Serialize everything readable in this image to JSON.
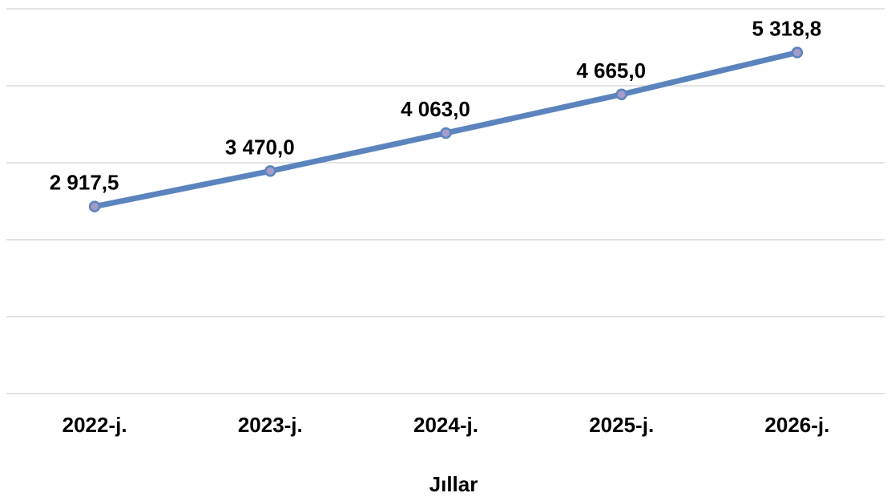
{
  "chart_data": {
    "type": "line",
    "categories": [
      "2022-j.",
      "2023-j.",
      "2024-j.",
      "2025-j.",
      "2026-j."
    ],
    "series": [
      {
        "values": [
          2917.5,
          3470.0,
          4063.0,
          4665.0,
          5318.8
        ],
        "labels": [
          "2 917,5",
          "3 470,0",
          "4 063,0",
          "4 665,0",
          "5 318,8"
        ]
      }
    ],
    "xlabel": "Jıllar",
    "ylabel": "",
    "ylim": [
      0,
      6000
    ],
    "grid": true,
    "legend": "none",
    "colors": {
      "line": "#5B84BE",
      "marker_fill": "#A39BC9",
      "marker_stroke": "#5B84BE",
      "gridline": "#D9D9D9"
    }
  }
}
